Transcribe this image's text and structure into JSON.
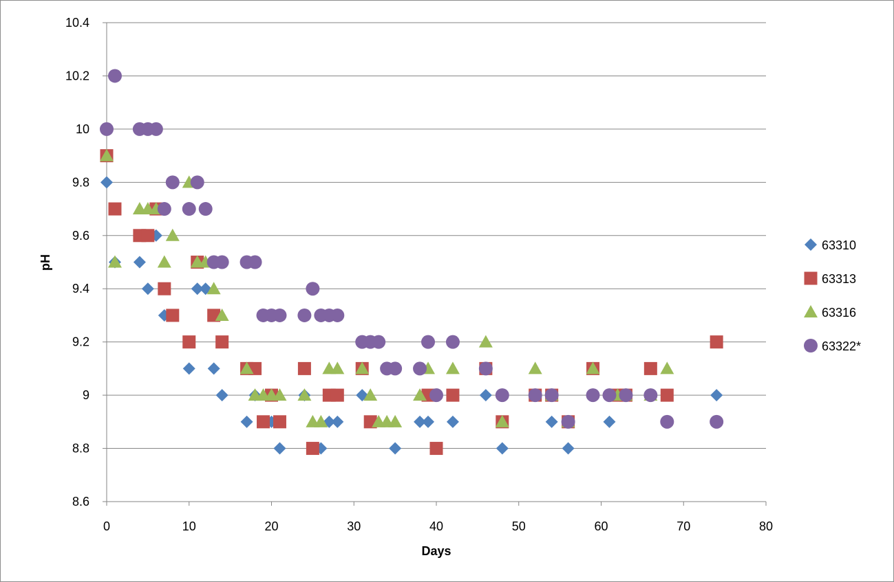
{
  "chart_data": {
    "type": "scatter",
    "xlabel": "Days",
    "ylabel": "pH",
    "xlim": [
      0,
      80
    ],
    "ylim": [
      8.6,
      10.4
    ],
    "x_ticks": [
      "0",
      "10",
      "20",
      "30",
      "40",
      "50",
      "60",
      "70",
      "80"
    ],
    "y_ticks": [
      "8.6",
      "8.8",
      "9",
      "9.2",
      "9.4",
      "9.6",
      "9.8",
      "10",
      "10.2",
      "10.4"
    ],
    "grid": "horizontal",
    "legend_position": "right",
    "series": [
      {
        "name": "63310",
        "marker": "diamond",
        "color": "#4f81bd",
        "points": [
          [
            0,
            9.8
          ],
          [
            1,
            9.5
          ],
          [
            4,
            9.5
          ],
          [
            5,
            9.4
          ],
          [
            6,
            9.6
          ],
          [
            7,
            9.3
          ],
          [
            10,
            9.1
          ],
          [
            11,
            9.4
          ],
          [
            12,
            9.4
          ],
          [
            13,
            9.1
          ],
          [
            14,
            9.0
          ],
          [
            17,
            8.9
          ],
          [
            18,
            9.0
          ],
          [
            20,
            8.9
          ],
          [
            21,
            8.8
          ],
          [
            24,
            9.0
          ],
          [
            26,
            8.8
          ],
          [
            27,
            8.9
          ],
          [
            28,
            8.9
          ],
          [
            31,
            9.0
          ],
          [
            35,
            8.8
          ],
          [
            38,
            8.9
          ],
          [
            39,
            8.9
          ],
          [
            42,
            8.9
          ],
          [
            46,
            9.0
          ],
          [
            48,
            8.8
          ],
          [
            52,
            9.0
          ],
          [
            54,
            8.9
          ],
          [
            56,
            8.8
          ],
          [
            61,
            8.9
          ],
          [
            74,
            9.0
          ]
        ]
      },
      {
        "name": "63313",
        "marker": "square",
        "color": "#c0504d",
        "points": [
          [
            0,
            9.9
          ],
          [
            1,
            9.7
          ],
          [
            4,
            9.6
          ],
          [
            5,
            9.6
          ],
          [
            6,
            9.7
          ],
          [
            7,
            9.4
          ],
          [
            8,
            9.3
          ],
          [
            10,
            9.2
          ],
          [
            11,
            9.5
          ],
          [
            13,
            9.3
          ],
          [
            14,
            9.2
          ],
          [
            17,
            9.1
          ],
          [
            18,
            9.1
          ],
          [
            19,
            8.9
          ],
          [
            20,
            9.0
          ],
          [
            21,
            8.9
          ],
          [
            24,
            9.1
          ],
          [
            25,
            8.8
          ],
          [
            27,
            9.0
          ],
          [
            28,
            9.0
          ],
          [
            31,
            9.1
          ],
          [
            32,
            8.9
          ],
          [
            39,
            9.0
          ],
          [
            40,
            8.8
          ],
          [
            42,
            9.0
          ],
          [
            46,
            9.1
          ],
          [
            48,
            8.9
          ],
          [
            52,
            9.0
          ],
          [
            54,
            9.0
          ],
          [
            56,
            8.9
          ],
          [
            59,
            9.1
          ],
          [
            62,
            9.0
          ],
          [
            63,
            9.0
          ],
          [
            66,
            9.1
          ],
          [
            68,
            9.0
          ],
          [
            74,
            9.2
          ]
        ]
      },
      {
        "name": "63316",
        "marker": "triangle",
        "color": "#9bbb59",
        "points": [
          [
            0,
            9.9
          ],
          [
            1,
            9.5
          ],
          [
            4,
            9.7
          ],
          [
            5,
            9.7
          ],
          [
            6,
            9.7
          ],
          [
            7,
            9.5
          ],
          [
            8,
            9.6
          ],
          [
            10,
            9.8
          ],
          [
            11,
            9.5
          ],
          [
            12,
            9.5
          ],
          [
            13,
            9.4
          ],
          [
            14,
            9.3
          ],
          [
            17,
            9.1
          ],
          [
            18,
            9.0
          ],
          [
            19,
            9.0
          ],
          [
            20,
            9.0
          ],
          [
            21,
            9.0
          ],
          [
            24,
            9.0
          ],
          [
            25,
            8.9
          ],
          [
            26,
            8.9
          ],
          [
            27,
            9.1
          ],
          [
            28,
            9.1
          ],
          [
            31,
            9.1
          ],
          [
            32,
            9.0
          ],
          [
            33,
            8.9
          ],
          [
            34,
            8.9
          ],
          [
            35,
            8.9
          ],
          [
            38,
            9.0
          ],
          [
            39,
            9.1
          ],
          [
            42,
            9.1
          ],
          [
            46,
            9.2
          ],
          [
            48,
            8.9
          ],
          [
            52,
            9.1
          ],
          [
            54,
            9.0
          ],
          [
            56,
            8.9
          ],
          [
            59,
            9.1
          ],
          [
            62,
            9.0
          ],
          [
            63,
            9.0
          ],
          [
            66,
            9.0
          ],
          [
            68,
            9.1
          ]
        ]
      },
      {
        "name": "63322*",
        "marker": "circle",
        "color": "#8064a2",
        "points": [
          [
            0,
            10.0
          ],
          [
            1,
            10.2
          ],
          [
            4,
            10.0
          ],
          [
            5,
            10.0
          ],
          [
            6,
            10.0
          ],
          [
            7,
            9.7
          ],
          [
            8,
            9.8
          ],
          [
            10,
            9.7
          ],
          [
            11,
            9.8
          ],
          [
            12,
            9.7
          ],
          [
            13,
            9.5
          ],
          [
            14,
            9.5
          ],
          [
            17,
            9.5
          ],
          [
            18,
            9.5
          ],
          [
            19,
            9.3
          ],
          [
            20,
            9.3
          ],
          [
            21,
            9.3
          ],
          [
            24,
            9.3
          ],
          [
            25,
            9.4
          ],
          [
            26,
            9.3
          ],
          [
            27,
            9.3
          ],
          [
            28,
            9.3
          ],
          [
            31,
            9.2
          ],
          [
            32,
            9.2
          ],
          [
            33,
            9.2
          ],
          [
            34,
            9.1
          ],
          [
            35,
            9.1
          ],
          [
            38,
            9.1
          ],
          [
            39,
            9.2
          ],
          [
            40,
            9.0
          ],
          [
            42,
            9.2
          ],
          [
            46,
            9.1
          ],
          [
            48,
            9.0
          ],
          [
            52,
            9.0
          ],
          [
            54,
            9.0
          ],
          [
            56,
            8.9
          ],
          [
            59,
            9.0
          ],
          [
            61,
            9.0
          ],
          [
            63,
            9.0
          ],
          [
            66,
            9.0
          ],
          [
            68,
            8.9
          ],
          [
            74,
            8.9
          ]
        ]
      }
    ]
  }
}
